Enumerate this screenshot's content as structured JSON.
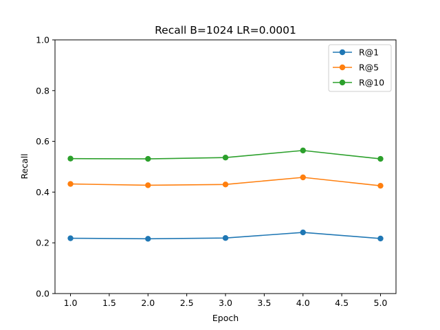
{
  "chart_data": {
    "type": "line",
    "title": "Recall B=1024 LR=0.0001",
    "xlabel": "Epoch",
    "ylabel": "Recall",
    "x": [
      1.0,
      2.0,
      3.0,
      4.0,
      5.0
    ],
    "xlim": [
      0.8,
      5.2
    ],
    "ylim": [
      0.0,
      1.0
    ],
    "xticks": [
      "1.0",
      "1.5",
      "2.0",
      "2.5",
      "3.0",
      "3.5",
      "4.0",
      "4.5",
      "5.0"
    ],
    "yticks": [
      "0.0",
      "0.2",
      "0.4",
      "0.6",
      "0.8",
      "1.0"
    ],
    "grid": false,
    "legend_position": "top-right",
    "series": [
      {
        "name": "R@1",
        "color": "#1f77b4",
        "values": [
          0.218,
          0.216,
          0.219,
          0.241,
          0.217
        ]
      },
      {
        "name": "R@5",
        "color": "#ff7f0e",
        "values": [
          0.432,
          0.427,
          0.43,
          0.458,
          0.425
        ]
      },
      {
        "name": "R@10",
        "color": "#2ca02c",
        "values": [
          0.532,
          0.531,
          0.536,
          0.564,
          0.531
        ]
      }
    ]
  }
}
